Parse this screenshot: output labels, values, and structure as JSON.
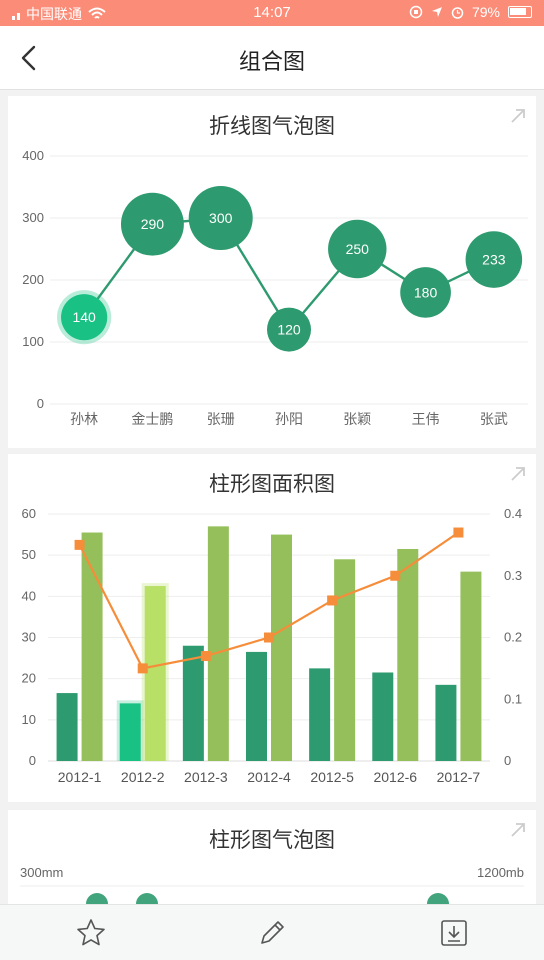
{
  "status_bar": {
    "carrier": "中国联通",
    "time": "14:07",
    "battery": "79%"
  },
  "nav": {
    "title": "组合图"
  },
  "colors": {
    "teal": "#2e9a6f",
    "teal_bright": "#1ac185",
    "olive": "#95bf5a",
    "olive_bright": "#b8df66",
    "orange": "#f58d3a"
  },
  "cards": {
    "bubble_line": {
      "title": "折线图气泡图"
    },
    "bar_area": {
      "title": "柱形图面积图"
    },
    "bar_bubble": {
      "title": "柱形图气泡图"
    }
  },
  "chart_data": [
    {
      "type": "line",
      "title": "折线图气泡图",
      "categories": [
        "孙林",
        "金士鹏",
        "张珊",
        "孙阳",
        "张颖",
        "王伟",
        "张武"
      ],
      "series": [
        {
          "values": [
            140,
            290,
            300,
            120,
            250,
            180,
            233
          ]
        }
      ],
      "ylim": [
        0,
        400
      ],
      "yticks": [
        "0",
        "100",
        "200",
        "300",
        "400"
      ],
      "highlighted_index": 0,
      "grid": true
    },
    {
      "type": "bar",
      "title": "柱形图面积图",
      "categories": [
        "2012-1",
        "2012-2",
        "2012-3",
        "2012-4",
        "2012-5",
        "2012-6",
        "2012-7"
      ],
      "series": [
        {
          "values": [
            16.5,
            14,
            28,
            26.5,
            22.5,
            21.5,
            18.5
          ]
        },
        {
          "values": [
            55.5,
            42.5,
            57,
            55,
            49,
            51.5,
            46
          ]
        },
        {
          "values": [
            0.35,
            0.15,
            0.17,
            0.2,
            0.26,
            0.3,
            0.37
          ],
          "axis": "right"
        }
      ],
      "ylim": [
        0,
        60
      ],
      "yticks": [
        "0",
        "10",
        "20",
        "30",
        "40",
        "50",
        "60"
      ],
      "y2lim": [
        0,
        0.4
      ],
      "y2ticks": [
        "0",
        "0.1",
        "0.2",
        "0.3",
        "0.4"
      ],
      "highlighted_index": 1,
      "grid": true
    },
    {
      "type": "bar",
      "title": "柱形图气泡图",
      "ylabel_left_top": "300mm",
      "ylabel_right_top": "1200mb"
    }
  ]
}
